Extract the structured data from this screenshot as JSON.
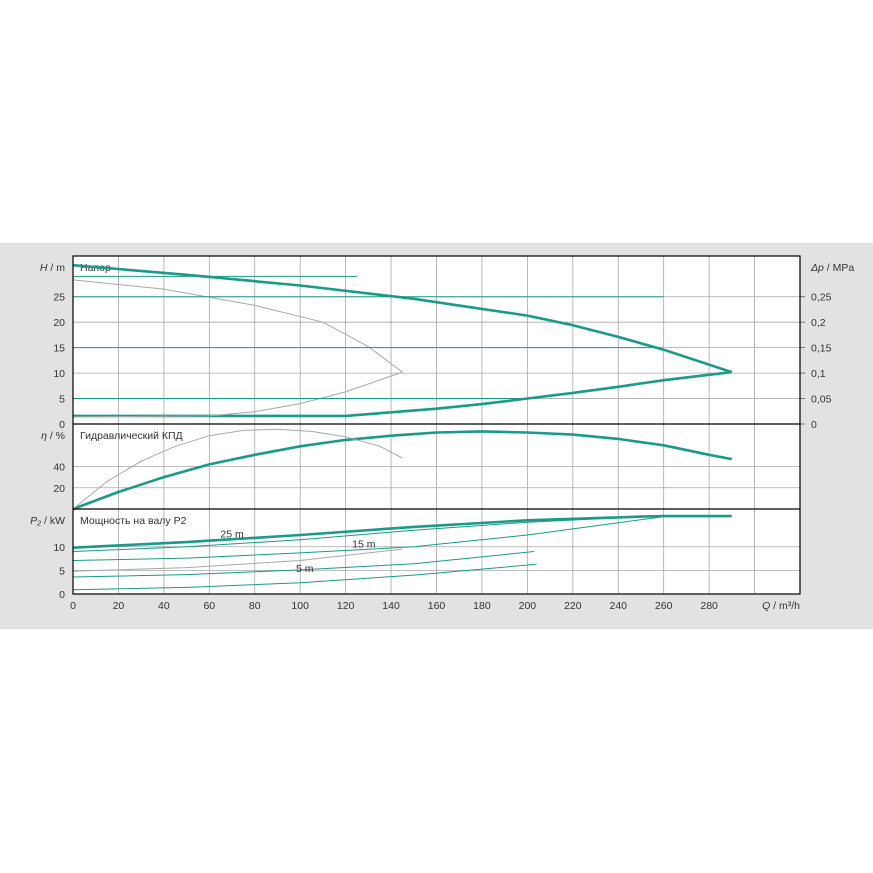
{
  "colors": {
    "curve": "#1a9a87",
    "ref": "#a8a8a8",
    "grid": "#a8a8a8",
    "panel": "#e2e2e2",
    "plot_bg": "#ffffff"
  },
  "chart_data": {
    "type": "line",
    "x_label": {
      "symbol": "Q",
      "unit": "m³/h"
    },
    "x_ticks": [
      "0",
      "20",
      "40",
      "60",
      "80",
      "100",
      "120",
      "140",
      "160",
      "180",
      "200",
      "220",
      "240",
      "260",
      "280"
    ],
    "xlim": [
      0,
      320
    ],
    "panels": [
      {
        "id": "head",
        "title": "Напор",
        "y_label": {
          "symbol": "H",
          "unit": "m"
        },
        "y_ticks": [
          "0",
          "5",
          "10",
          "15",
          "20",
          "25"
        ],
        "ylim": [
          0,
          33
        ],
        "right_label": {
          "symbol": "Δp",
          "unit": "MPa"
        },
        "right_ticks": [
          "0",
          "0,05",
          "0,1",
          "0,15",
          "0,2",
          "0,25"
        ],
        "series": [
          {
            "role": "max_curve",
            "x": [
              0,
              50,
              100,
              150,
              200,
              220,
              240,
              260,
              290
            ],
            "y": [
              31.2,
              29.3,
              27.2,
              24.6,
              21.3,
              19.4,
              17.1,
              14.6,
              10.2
            ]
          },
          {
            "role": "control_line",
            "x": [
              0,
              120,
              140,
              160,
              180,
              200,
              220,
              240,
              260,
              290
            ],
            "y": [
              1.6,
              1.6,
              2.3,
              3.0,
              3.9,
              5.0,
              6.1,
              7.3,
              8.6,
              10.2
            ]
          },
          {
            "role": "min_curve",
            "x": [
              0,
              40,
              80,
              110,
              130,
              145
            ],
            "y": [
              28.3,
              26.5,
              23.3,
              20.0,
              15.2,
              10.2
            ]
          },
          {
            "role": "min_curve_low",
            "x": [
              0,
              60,
              80,
              100,
              120,
              145
            ],
            "y": [
              1.4,
              1.6,
              2.4,
              4.0,
              6.3,
              10.2
            ]
          },
          {
            "role": "duty_25",
            "x": [
              0,
              260
            ],
            "y": [
              25,
              25
            ]
          },
          {
            "role": "duty_15",
            "x": [
              0,
              259
            ],
            "y": [
              15,
              15
            ]
          },
          {
            "role": "duty_5",
            "x": [
              0,
              203
            ],
            "y": [
              5,
              5
            ]
          },
          {
            "role": "duty_29",
            "x": [
              0,
              125
            ],
            "y": [
              29,
              29
            ]
          }
        ]
      },
      {
        "id": "eta",
        "title": "Гидравлический КПД",
        "y_label": {
          "symbol": "η",
          "unit": "%"
        },
        "y_ticks": [
          "20",
          "40"
        ],
        "ylim": [
          0,
          80
        ],
        "series": [
          {
            "role": "max_curve",
            "x": [
              0,
              20,
              40,
              60,
              80,
              100,
              120,
              140,
              160,
              180,
              200,
              220,
              240,
              260,
              280,
              290
            ],
            "y": [
              0,
              16,
              30,
              42,
              51,
              59,
              65,
              69,
              72,
              73,
              72,
              70,
              66,
              60,
              51,
              47
            ]
          },
          {
            "role": "min_curve",
            "x": [
              0,
              15,
              30,
              45,
              60,
              75,
              90,
              105,
              120,
              135,
              145
            ],
            "y": [
              0,
              26,
              45,
              59,
              69,
              74,
              75,
              73,
              68,
              59,
              48
            ]
          }
        ]
      },
      {
        "id": "power",
        "title": "Мощность на валу P2",
        "y_label": {
          "symbol": "P₂",
          "unit": "kW"
        },
        "y_ticks": [
          "0",
          "5",
          "10"
        ],
        "ylim": [
          0,
          18
        ],
        "series": [
          {
            "role": "max_curve",
            "x": [
              0,
              50,
              100,
              150,
              200,
              250,
              260,
              290
            ],
            "y": [
              9.8,
              11.0,
              12.5,
              14.2,
              15.6,
              16.4,
              16.5,
              16.5
            ]
          },
          {
            "role": "duty_25",
            "label": "25 m",
            "x": [
              0,
              50,
              100,
              150,
              200,
              260
            ],
            "y": [
              9.0,
              10.0,
              11.5,
              13.5,
              15.2,
              16.6
            ]
          },
          {
            "role": "duty_15",
            "label": "15 m",
            "x": [
              0,
              50,
              100,
              150,
              200,
              259
            ],
            "y": [
              7.1,
              7.6,
              8.7,
              10.0,
              12.5,
              16.3
            ]
          },
          {
            "role": "duty_5",
            "label": "5 m",
            "x": [
              0,
              50,
              100,
              150,
              203
            ],
            "y": [
              3.6,
              4.1,
              5.1,
              6.4,
              9.0
            ]
          },
          {
            "role": "min_curve",
            "x": [
              0,
              50,
              100,
              145
            ],
            "y": [
              4.8,
              5.6,
              7.1,
              9.5
            ]
          },
          {
            "role": "control_line",
            "x": [
              0,
              50,
              100,
              150,
              204
            ],
            "y": [
              0.9,
              1.4,
              2.4,
              4.0,
              6.3
            ]
          }
        ]
      }
    ]
  }
}
